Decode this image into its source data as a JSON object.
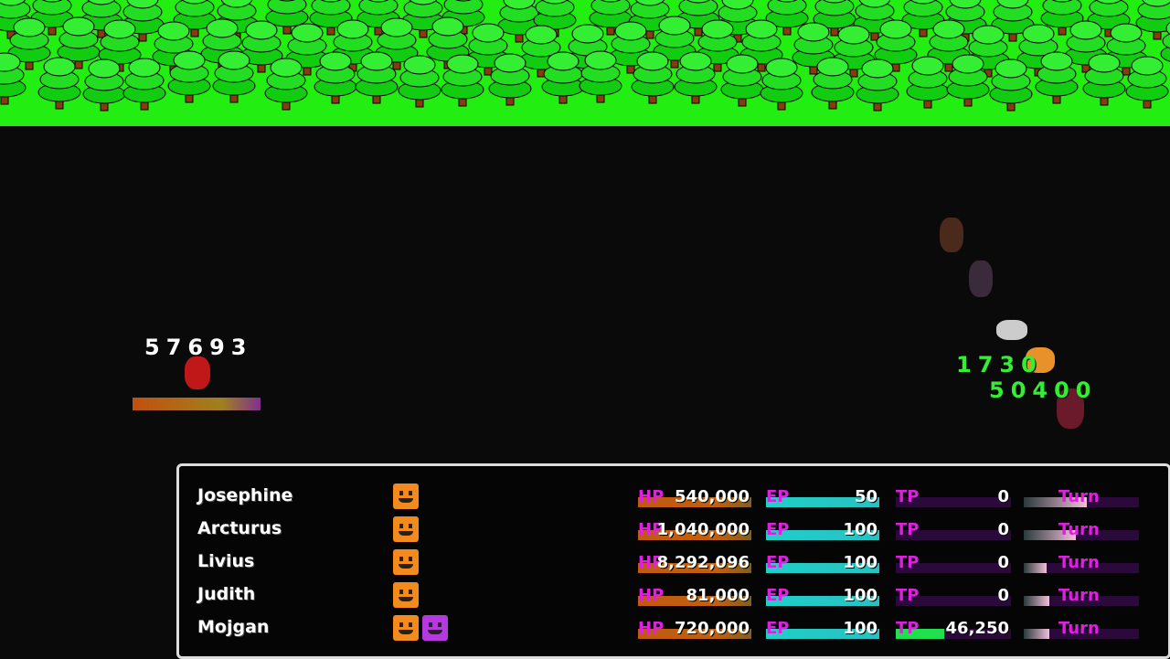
{
  "colors": {
    "forest": "#22ee11",
    "hp": "#c05a10",
    "ep": "#20d0c8",
    "tp": "#20e050",
    "label": "#e020e0"
  },
  "damage_popups": {
    "enemy": "57693",
    "ally_1": "1730",
    "ally_2": "50400"
  },
  "party": [
    {
      "name": "Josephine",
      "faces": [
        "orange"
      ],
      "hp": "540,000",
      "hp_fill": 1,
      "ep": "50",
      "ep_fill": 1,
      "tp": "0",
      "tp_fill": 0,
      "turn_fill": 0.55
    },
    {
      "name": "Arcturus",
      "faces": [
        "orange"
      ],
      "hp": "1,040,000",
      "hp_fill": 1,
      "ep": "100",
      "ep_fill": 1,
      "tp": "0",
      "tp_fill": 0,
      "turn_fill": 0.45
    },
    {
      "name": "Livius",
      "faces": [
        "orange"
      ],
      "hp": "8,292,096",
      "hp_fill": 1,
      "ep": "100",
      "ep_fill": 1,
      "tp": "0",
      "tp_fill": 0,
      "turn_fill": 0.2
    },
    {
      "name": "Judith",
      "faces": [
        "orange"
      ],
      "hp": "81,000",
      "hp_fill": 1,
      "ep": "100",
      "ep_fill": 1,
      "tp": "0",
      "tp_fill": 0,
      "turn_fill": 0.22
    },
    {
      "name": "Mojgan",
      "faces": [
        "orange",
        "purple"
      ],
      "hp": "720,000",
      "hp_fill": 1,
      "ep": "100",
      "ep_fill": 1,
      "tp": "46,250",
      "tp_fill": 0.42,
      "turn_fill": 0.22
    }
  ],
  "labels": {
    "hp": "HP",
    "ep": "EP",
    "tp": "TP",
    "turn": "Turn"
  }
}
